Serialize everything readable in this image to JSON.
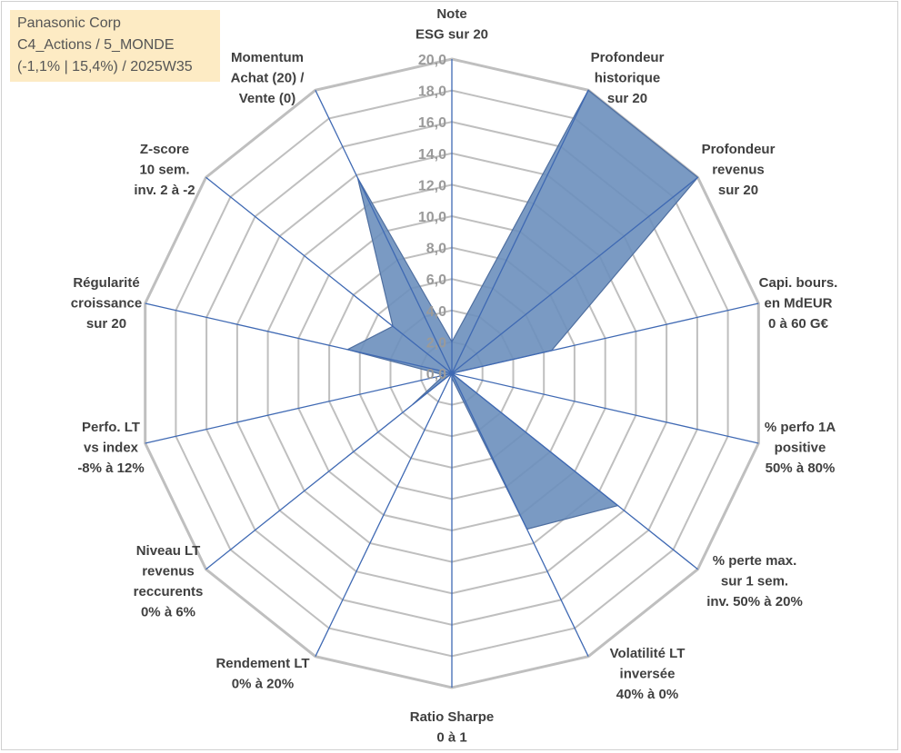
{
  "info_box": {
    "line1": "Panasonic Corp",
    "line2": "C4_Actions / 5_MONDE",
    "line3": "(-1,1% | 15,4%) / 2025W35"
  },
  "chart_data": {
    "type": "radar",
    "title": "",
    "r_range": [
      0,
      20
    ],
    "r_ticks": [
      "0,0",
      "2,0",
      "4,0",
      "6,0",
      "8,0",
      "10,0",
      "12,0",
      "14,0",
      "16,0",
      "18,0",
      "20,0"
    ],
    "grid": true,
    "categories": [
      [
        "Note",
        "ESG sur 20"
      ],
      [
        "Profondeur",
        "historique",
        "sur 20"
      ],
      [
        "Profondeur",
        "revenus",
        "sur 20"
      ],
      [
        "Capi. bours.",
        "en MdEUR",
        "0 à 60 G€"
      ],
      [
        "% perfo 1A",
        "positive",
        "50% à 80%"
      ],
      [
        "% perte max.",
        "sur 1 sem.",
        "inv. 50% à 20%"
      ],
      [
        "Volatilité LT",
        "inversée",
        "40% à 0%"
      ],
      [
        "Ratio Sharpe",
        "0 à 1"
      ],
      [
        "Rendement LT",
        "0% à 20%"
      ],
      [
        "Niveau LT",
        "revenus",
        "reccurents",
        "0% à 6%"
      ],
      [
        "Perfo. LT",
        "vs index",
        "-8% à 12%"
      ],
      [
        "Régularité",
        "croissance",
        "sur 20"
      ],
      [
        "Z-score",
        "10 sem.",
        "inv. 2 à -2"
      ],
      [
        "Momentum",
        "Achat (20) /",
        "Vente (0)"
      ]
    ],
    "series": [
      {
        "values": [
          2.0,
          20.0,
          20.0,
          6.5,
          0.0,
          13.5,
          11.0,
          0.3,
          0.0,
          3.2,
          0.5,
          6.8,
          4.8,
          13.8
        ],
        "fill": "#6b8fbc",
        "stroke": "#4f6fa0"
      }
    ],
    "colors": {
      "grid": "#bfbfbf",
      "spoke": "#3f69b3"
    }
  }
}
